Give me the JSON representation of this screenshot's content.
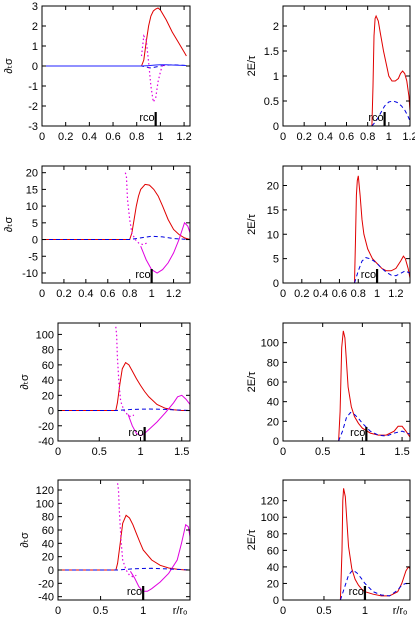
{
  "chart_data": [
    {
      "type": "line",
      "ylabel": "∂ₜσ",
      "xlim": [
        0,
        1.25
      ],
      "ylim": [
        -3,
        3
      ],
      "xticks": [
        0,
        0.2,
        0.4,
        0.6,
        0.8,
        1,
        1.2
      ],
      "xtick_labels": [
        "0",
        "0.2",
        "0.4",
        "0.6",
        "0.8",
        "1",
        "1.2"
      ],
      "yticks": [
        -3,
        -2,
        -1,
        0,
        1,
        2,
        3
      ],
      "ytick_labels": [
        "-3",
        "-2",
        "-1",
        "0",
        "1",
        "2",
        "3"
      ],
      "annotation": {
        "text": "rco",
        "x": 0.96
      },
      "series": [
        {
          "color": "#e00000",
          "style": "solid",
          "x": [
            0,
            0.84,
            0.86,
            0.88,
            0.9,
            0.92,
            0.94,
            0.96,
            0.98,
            1.0,
            1.05,
            1.1,
            1.15,
            1.2,
            1.22
          ],
          "y": [
            0,
            0,
            0.3,
            1.2,
            2.0,
            2.5,
            2.75,
            2.85,
            2.9,
            2.8,
            2.3,
            1.7,
            1.2,
            0.7,
            0.5
          ]
        },
        {
          "color": "#0000e0",
          "style": "dashed",
          "x": [
            0,
            0.84,
            0.88,
            0.92,
            0.96,
            1.0,
            1.05,
            1.1,
            1.15,
            1.2,
            1.22
          ],
          "y": [
            0,
            0,
            -0.05,
            -0.1,
            -0.05,
            0,
            0.04,
            0.06,
            0.05,
            0.03,
            0.02
          ]
        },
        {
          "color": "#e000e0",
          "style": "dotted",
          "x": [
            0.84,
            0.86,
            0.88,
            0.9,
            0.92,
            0.94,
            0.96,
            0.98,
            1.0,
            1.02,
            1.04
          ],
          "y": [
            0.5,
            1.5,
            1.3,
            0.2,
            -1.0,
            -1.8,
            -1.6,
            -0.8,
            -0.3,
            0.1,
            0
          ]
        },
        {
          "color": "#2020ff",
          "style": "solid",
          "x": [
            0,
            0.84,
            0.9,
            0.96,
            1.0,
            1.05,
            1.1,
            1.15,
            1.2,
            1.22
          ],
          "y": [
            0,
            0,
            0.02,
            0.05,
            0.06,
            0.06,
            0.05,
            0.04,
            0.03,
            0.02
          ]
        }
      ]
    },
    {
      "type": "line",
      "ylabel": "2E/τ",
      "xlim": [
        0,
        1.2
      ],
      "ylim": [
        0,
        2.4
      ],
      "xticks": [
        0,
        0.2,
        0.4,
        0.6,
        0.8,
        1,
        1.2
      ],
      "xtick_labels": [
        "0",
        "0.2",
        "0.4",
        "0.6",
        "0.8",
        "1",
        "1.2"
      ],
      "yticks": [
        0,
        0.5,
        1,
        1.5,
        2
      ],
      "ytick_labels": [
        "0",
        "0.5",
        "1",
        "1.5",
        "2"
      ],
      "annotation": {
        "text": "rco",
        "x": 0.96
      },
      "series": [
        {
          "color": "#e00000",
          "style": "solid",
          "x": [
            0.84,
            0.85,
            0.86,
            0.87,
            0.88,
            0.9,
            0.92,
            0.95,
            0.98,
            1.0,
            1.03,
            1.06,
            1.09,
            1.11,
            1.13,
            1.15,
            1.17,
            1.19,
            1.2
          ],
          "y": [
            0,
            0.8,
            1.8,
            2.15,
            2.2,
            2.1,
            1.85,
            1.5,
            1.2,
            1.0,
            0.9,
            0.9,
            0.95,
            1.05,
            1.1,
            1.05,
            0.9,
            0.6,
            0.3
          ]
        },
        {
          "color": "#0000e0",
          "style": "dashed",
          "x": [
            0.84,
            0.88,
            0.92,
            0.96,
            1.0,
            1.04,
            1.08,
            1.12,
            1.15,
            1.18,
            1.2
          ],
          "y": [
            0,
            0.1,
            0.25,
            0.4,
            0.48,
            0.5,
            0.47,
            0.4,
            0.32,
            0.2,
            0.1
          ]
        }
      ]
    },
    {
      "type": "line",
      "ylabel": "∂ₜσ",
      "xlim": [
        0,
        1.35
      ],
      "ylim": [
        -13,
        22
      ],
      "xticks": [
        0,
        0.2,
        0.4,
        0.6,
        0.8,
        1,
        1.2
      ],
      "xtick_labels": [
        "0",
        "0.2",
        "0.4",
        "0.6",
        "0.8",
        "1",
        "1.2"
      ],
      "yticks": [
        -10,
        -5,
        0,
        5,
        10,
        15,
        20
      ],
      "ytick_labels": [
        "-10",
        "-5",
        "0",
        "5",
        "10",
        "15",
        "20"
      ],
      "annotation": {
        "text": "rco",
        "x": 1.0
      },
      "series": [
        {
          "color": "#e00000",
          "style": "solid",
          "x": [
            0,
            0.8,
            0.82,
            0.84,
            0.86,
            0.88,
            0.9,
            0.94,
            0.98,
            1.02,
            1.06,
            1.1,
            1.15,
            1.2,
            1.25,
            1.3,
            1.35
          ],
          "y": [
            0,
            0,
            2,
            6,
            10,
            13,
            15,
            16.5,
            16.3,
            15,
            13,
            10,
            6,
            3,
            1.5,
            0.5,
            0
          ]
        },
        {
          "color": "#e000e0",
          "style": "solid",
          "x": [
            0.9,
            0.95,
            1.0,
            1.05,
            1.1,
            1.15,
            1.2,
            1.25,
            1.28,
            1.3,
            1.33,
            1.35
          ],
          "y": [
            -2,
            -6,
            -9,
            -10,
            -9,
            -7,
            -4,
            0,
            3,
            5,
            4,
            2
          ]
        },
        {
          "color": "#e000e0",
          "style": "dotted",
          "x": [
            0.76,
            0.77,
            0.78,
            0.8,
            0.82,
            0.85,
            0.88,
            0.92,
            0.96
          ],
          "y": [
            20,
            19,
            12,
            6,
            2,
            0,
            -1,
            -1.5,
            -1
          ]
        },
        {
          "color": "#0000e0",
          "style": "dashed",
          "x": [
            0,
            0.8,
            0.9,
            1.0,
            1.1,
            1.2,
            1.3,
            1.35
          ],
          "y": [
            0,
            0,
            0.5,
            1.0,
            0.8,
            0.3,
            0.1,
            0
          ]
        }
      ]
    },
    {
      "type": "line",
      "ylabel": "2E/τ",
      "xlim": [
        0,
        1.35
      ],
      "ylim": [
        0,
        24
      ],
      "xticks": [
        0,
        0.2,
        0.4,
        0.6,
        0.8,
        1,
        1.2
      ],
      "xtick_labels": [
        "0",
        "0.2",
        "0.4",
        "0.6",
        "0.8",
        "1",
        "1.2"
      ],
      "yticks": [
        0,
        5,
        10,
        15,
        20
      ],
      "ytick_labels": [
        "0",
        "5",
        "10",
        "15",
        "20"
      ],
      "annotation": {
        "text": "rco",
        "x": 1.0
      },
      "series": [
        {
          "color": "#e00000",
          "style": "solid",
          "x": [
            0.76,
            0.77,
            0.78,
            0.79,
            0.8,
            0.82,
            0.84,
            0.86,
            0.9,
            0.95,
            1.0,
            1.05,
            1.1,
            1.15,
            1.2,
            1.25,
            1.28,
            1.3,
            1.33,
            1.35
          ],
          "y": [
            0,
            8,
            18,
            21,
            22,
            18,
            13,
            10,
            7,
            5,
            4,
            3,
            2.5,
            2.5,
            3,
            4.5,
            5.5,
            5,
            3,
            1
          ]
        },
        {
          "color": "#0000e0",
          "style": "dashed",
          "x": [
            0.76,
            0.8,
            0.84,
            0.88,
            0.92,
            0.96,
            1.0,
            1.05,
            1.1,
            1.15,
            1.2,
            1.25,
            1.3,
            1.35
          ],
          "y": [
            0,
            2.5,
            4.5,
            5.2,
            5.0,
            4.6,
            4.0,
            3.0,
            2.2,
            1.6,
            1.5,
            2.0,
            2.5,
            2.0
          ]
        }
      ]
    },
    {
      "type": "line",
      "ylabel": "∂ₜσ",
      "xlim": [
        0,
        1.6
      ],
      "ylim": [
        -40,
        115
      ],
      "xticks": [
        0,
        0.5,
        1,
        1.5
      ],
      "xtick_labels": [
        "0",
        "0.5",
        "1",
        "1.5"
      ],
      "yticks": [
        -40,
        -20,
        0,
        20,
        40,
        60,
        80,
        100
      ],
      "ytick_labels": [
        "-40",
        "-20",
        "0",
        "20",
        "40",
        "60",
        "80",
        "100"
      ],
      "annotation": {
        "text": "rco",
        "x": 1.05
      },
      "series": [
        {
          "color": "#e00000",
          "style": "solid",
          "x": [
            0,
            0.7,
            0.72,
            0.75,
            0.78,
            0.82,
            0.86,
            0.9,
            0.95,
            1.0,
            1.05,
            1.1,
            1.2,
            1.3,
            1.4,
            1.5,
            1.6
          ],
          "y": [
            0,
            0,
            10,
            35,
            55,
            63,
            60,
            52,
            42,
            33,
            25,
            18,
            8,
            3,
            1,
            0,
            0
          ]
        },
        {
          "color": "#e000e0",
          "style": "solid",
          "x": [
            0.85,
            0.9,
            0.95,
            1.0,
            1.05,
            1.1,
            1.2,
            1.3,
            1.4,
            1.45,
            1.5,
            1.55,
            1.6
          ],
          "y": [
            -5,
            -20,
            -30,
            -33,
            -30,
            -25,
            -15,
            -3,
            10,
            18,
            20,
            15,
            8
          ]
        },
        {
          "color": "#e000e0",
          "style": "dotted",
          "x": [
            0.7,
            0.71,
            0.72,
            0.74,
            0.76,
            0.8,
            0.84,
            0.88,
            0.92
          ],
          "y": [
            110,
            100,
            70,
            35,
            12,
            0,
            -5,
            -8,
            -6
          ]
        },
        {
          "color": "#0000e0",
          "style": "dashed",
          "x": [
            0,
            0.7,
            0.9,
            1.1,
            1.3,
            1.5,
            1.6
          ],
          "y": [
            0,
            0,
            1.5,
            2,
            1.5,
            0.5,
            0
          ]
        }
      ]
    },
    {
      "type": "line",
      "ylabel": "2E/τ",
      "xlim": [
        0,
        1.6
      ],
      "ylim": [
        0,
        120
      ],
      "xticks": [
        0,
        0.5,
        1,
        1.5
      ],
      "xtick_labels": [
        "0",
        "0.5",
        "1",
        "1.5"
      ],
      "yticks": [
        0,
        20,
        40,
        60,
        80,
        100
      ],
      "ytick_labels": [
        "0",
        "20",
        "40",
        "60",
        "80",
        "100"
      ],
      "annotation": {
        "text": "rco",
        "x": 1.05
      },
      "series": [
        {
          "color": "#e00000",
          "style": "solid",
          "x": [
            0.7,
            0.72,
            0.74,
            0.76,
            0.78,
            0.8,
            0.82,
            0.86,
            0.9,
            0.95,
            1.0,
            1.1,
            1.2,
            1.3,
            1.4,
            1.45,
            1.5,
            1.55,
            1.6
          ],
          "y": [
            0,
            30,
            95,
            112,
            105,
            80,
            55,
            35,
            25,
            18,
            13,
            8,
            6,
            6,
            10,
            15,
            15,
            10,
            4
          ]
        },
        {
          "color": "#0000e0",
          "style": "dashed",
          "x": [
            0.7,
            0.75,
            0.8,
            0.85,
            0.9,
            0.95,
            1.0,
            1.1,
            1.2,
            1.3,
            1.4,
            1.5,
            1.6
          ],
          "y": [
            0,
            10,
            24,
            29,
            27,
            23,
            18,
            10,
            6,
            5,
            8,
            10,
            7
          ]
        }
      ]
    },
    {
      "type": "line",
      "ylabel": "∂ₜσ",
      "xlabel": "r/rₒ",
      "xlim": [
        0,
        1.55
      ],
      "ylim": [
        -45,
        135
      ],
      "xticks": [
        0,
        0.5,
        1
      ],
      "xtick_labels": [
        "0",
        "0.5",
        "1"
      ],
      "yticks": [
        -40,
        -20,
        0,
        20,
        40,
        60,
        80,
        100,
        120
      ],
      "ytick_labels": [
        "-40",
        "-20",
        "0",
        "20",
        "40",
        "60",
        "80",
        "100",
        "120"
      ],
      "annotation": {
        "text": "rco",
        "x": 1.0
      },
      "series": [
        {
          "color": "#e00000",
          "style": "solid",
          "x": [
            0,
            0.68,
            0.7,
            0.73,
            0.76,
            0.8,
            0.84,
            0.88,
            0.92,
            0.96,
            1.0,
            1.1,
            1.2,
            1.3,
            1.4,
            1.5,
            1.55
          ],
          "y": [
            0,
            0,
            10,
            40,
            70,
            82,
            78,
            68,
            55,
            42,
            30,
            15,
            7,
            3,
            1,
            0,
            0
          ]
        },
        {
          "color": "#e000e0",
          "style": "solid",
          "x": [
            0.85,
            0.9,
            0.95,
            1.0,
            1.05,
            1.1,
            1.2,
            1.3,
            1.4,
            1.45,
            1.5,
            1.53,
            1.55
          ],
          "y": [
            -2,
            -12,
            -25,
            -32,
            -32,
            -28,
            -18,
            -5,
            15,
            40,
            68,
            65,
            50
          ]
        },
        {
          "color": "#e000e0",
          "style": "dotted",
          "x": [
            0.7,
            0.71,
            0.72,
            0.74,
            0.76,
            0.8,
            0.84,
            0.88,
            0.92
          ],
          "y": [
            130,
            120,
            90,
            45,
            15,
            0,
            -8,
            -10,
            -8
          ]
        },
        {
          "color": "#0000e0",
          "style": "dashed",
          "x": [
            0,
            0.7,
            0.9,
            1.1,
            1.3,
            1.5,
            1.55
          ],
          "y": [
            0,
            0,
            2,
            2.5,
            1.5,
            0.5,
            0
          ]
        }
      ]
    },
    {
      "type": "line",
      "ylabel": "2E/τ",
      "xlabel": "r/rₒ",
      "xlim": [
        0,
        1.55
      ],
      "ylim": [
        0,
        145
      ],
      "xticks": [
        0,
        0.5,
        1
      ],
      "xtick_labels": [
        "0",
        "0.5",
        "1"
      ],
      "yticks": [
        0,
        20,
        40,
        60,
        80,
        100,
        120
      ],
      "ytick_labels": [
        "0",
        "20",
        "40",
        "60",
        "80",
        "100",
        "120"
      ],
      "annotation": {
        "text": "rco",
        "x": 1.0
      },
      "series": [
        {
          "color": "#e00000",
          "style": "solid",
          "x": [
            0.7,
            0.72,
            0.73,
            0.74,
            0.76,
            0.78,
            0.8,
            0.84,
            0.88,
            0.92,
            0.96,
            1.0,
            1.1,
            1.2,
            1.3,
            1.4,
            1.45,
            1.5,
            1.53,
            1.55
          ],
          "y": [
            0,
            60,
            120,
            135,
            125,
            95,
            65,
            38,
            25,
            18,
            13,
            10,
            7,
            5,
            5,
            10,
            20,
            35,
            40,
            38
          ]
        },
        {
          "color": "#0000e0",
          "style": "dashed",
          "x": [
            0.7,
            0.75,
            0.8,
            0.85,
            0.9,
            0.95,
            1.0,
            1.1,
            1.2,
            1.3,
            1.4,
            1.45,
            1.5,
            1.55
          ],
          "y": [
            0,
            15,
            30,
            36,
            33,
            27,
            20,
            10,
            6,
            5,
            12,
            18,
            20,
            18
          ]
        }
      ]
    }
  ]
}
